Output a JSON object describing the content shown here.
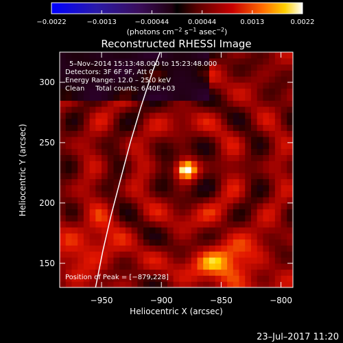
{
  "chart_data": {
    "type": "heatmap",
    "title": "Reconstructed RHESSI Image",
    "xlabel": "Heliocentric X (arcsec)",
    "ylabel": "Heliocentric Y (arcsec)",
    "xlim": [
      -985,
      -790
    ],
    "ylim": [
      130,
      325
    ],
    "x_ticks": [
      -950,
      -900,
      -850,
      -800
    ],
    "x_tick_labels": [
      "−950",
      "−900",
      "−850",
      "−800"
    ],
    "y_ticks": [
      150,
      200,
      250,
      300
    ],
    "y_tick_labels": [
      "150",
      "200",
      "250",
      "300"
    ],
    "colorbar": {
      "range": [
        -0.0022,
        0.0022
      ],
      "tick_labels": [
        "−0.0022",
        "−0.0013",
        "−0.00044",
        "0.00044",
        "0.0013",
        "0.0022"
      ],
      "label_main": "(photons cm",
      "label_exp1": "−2",
      "label_mid1": " s",
      "label_exp2": "−1",
      "label_mid2": " asec",
      "label_exp3": "−2",
      "label_end": ")"
    },
    "peak": {
      "x": -879,
      "y": 228
    },
    "info_lines": [
      "5–Nov–2014 15:13:48.000 to 15:23:48.000",
      "Detectors: 3F 6F 9F, Att 0",
      "Energy Range: 12.0 – 25.0 keV",
      "Clean     Total counts: 6.40E+03"
    ],
    "peak_label": "Position of Peak = [−879,228]",
    "limb_curve": [
      [
        -955,
        130
      ],
      [
        -949,
        160
      ],
      [
        -942,
        190
      ],
      [
        -934,
        220
      ],
      [
        -926,
        250
      ],
      [
        -917,
        280
      ],
      [
        -907,
        310
      ],
      [
        -901,
        325
      ]
    ]
  },
  "footer": {
    "timestamp": "23–Jul–2017 11:20"
  },
  "colors": {
    "background": "#000000",
    "axes": "#ffffff",
    "limb": "#ffffff"
  }
}
